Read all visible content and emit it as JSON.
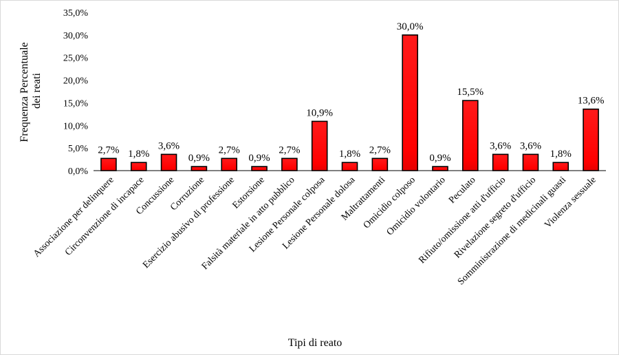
{
  "chart_data": {
    "type": "bar",
    "xlabel": "Tipi di reato",
    "ylabel_lines": [
      "Frequenza Percentuale",
      "dei reati"
    ],
    "ylim": [
      0,
      35
    ],
    "ytick_step": 5,
    "ytick_labels": [
      "0,0%",
      "5,0%",
      "10,0%",
      "15,0%",
      "20,0%",
      "25,0%",
      "30,0%",
      "35,0%"
    ],
    "grid": false,
    "bar_color": "#ff0000",
    "bar_edge_color": "#000000",
    "categories": [
      "Associazione per delinquere",
      "Circonvenzione di incapace",
      "Concussione",
      "Corruzione",
      "Esercizio abusivo di professione",
      "Estorsione",
      "Falsità materiale in atto pubblico",
      "Lesione Personale colposa",
      "Lesione Personale dolosa",
      "Maltrattamenti",
      "Omicidio colposo",
      "Omicidio volontario",
      "Peculato",
      "Rifiuto/omissione atti d'ufficio",
      "Rivelazione segreto d'ufficio",
      "Somministrazione di medicinali guasti",
      "Violenza sessuale"
    ],
    "values": [
      2.7,
      1.8,
      3.6,
      0.9,
      2.7,
      0.9,
      2.7,
      10.9,
      1.8,
      2.7,
      30.0,
      0.9,
      15.5,
      3.6,
      3.6,
      1.8,
      13.6
    ],
    "value_labels": [
      "2,7%",
      "1,8%",
      "3,6%",
      "0,9%",
      "2,7%",
      "0,9%",
      "2,7%",
      "10,9%",
      "1,8%",
      "2,7%",
      "30,0%",
      "0,9%",
      "15,5%",
      "3,6%",
      "3,6%",
      "1,8%",
      "13,6%"
    ]
  }
}
